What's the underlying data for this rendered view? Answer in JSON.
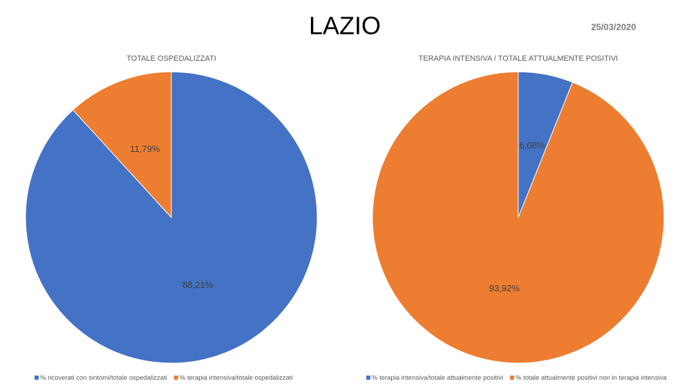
{
  "header": {
    "title": "LAZIO",
    "date": "25/03/2020"
  },
  "chart_data": [
    {
      "type": "pie",
      "title": "TOTALE OSPEDALIZZATI",
      "categories": [
        "% ricoverati con sintomi/totale ospedalizzati",
        "% terapia intensiva/totale ospedalizzati"
      ],
      "values": [
        88.21,
        11.79
      ],
      "value_labels": [
        "88,21%",
        "11,79%"
      ],
      "colors": [
        "#4472c4",
        "#ed7d31"
      ]
    },
    {
      "type": "pie",
      "title": "TERAPIA INTENSIVA / TOTALE ATTUALMENTE POSITIVI",
      "categories": [
        "% terapia intensiva/totale attualmente positivi",
        "% totale attualmente positivi non in terapia intensiva"
      ],
      "values": [
        6.08,
        93.92
      ],
      "value_labels": [
        "6,08%",
        "93,92%"
      ],
      "colors": [
        "#4472c4",
        "#ed7d31"
      ]
    }
  ]
}
